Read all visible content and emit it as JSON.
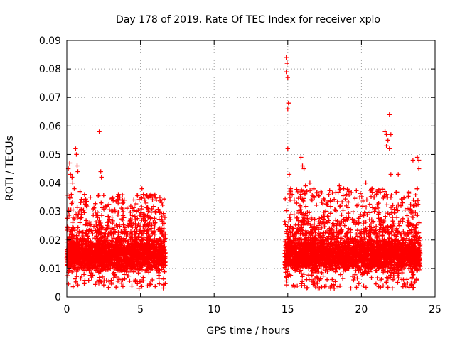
{
  "chart_data": {
    "type": "scatter",
    "title": "Day 178 of 2019, Rate Of TEC Index for receiver xplo",
    "xlabel": "GPS time / hours",
    "ylabel": "ROTI / TECUs",
    "xlim": [
      0,
      25
    ],
    "ylim": [
      0,
      0.09
    ],
    "grid": true,
    "marker": "plus",
    "color": "#ff0000",
    "x_ticks": [
      "0",
      "5",
      "10",
      "15",
      "20",
      "25"
    ],
    "y_ticks": [
      "0",
      "0.01",
      "0.02",
      "0.03",
      "0.04",
      "0.05",
      "0.06",
      "0.07",
      "0.08",
      "0.09"
    ],
    "series": [
      {
        "name": "ROTI",
        "segments": [
          {
            "x_range": [
              0.0,
              6.7
            ],
            "typical_range": [
              0.008,
              0.022
            ],
            "upper_range": [
              0.022,
              0.036
            ]
          },
          {
            "x_range": [
              14.8,
              24.0
            ],
            "typical_range": [
              0.008,
              0.022
            ],
            "upper_range": [
              0.022,
              0.038
            ]
          }
        ],
        "points": [
          [
            0.1,
            0.045
          ],
          [
            0.2,
            0.047
          ],
          [
            0.25,
            0.043
          ],
          [
            0.35,
            0.042
          ],
          [
            0.4,
            0.04
          ],
          [
            0.5,
            0.038
          ],
          [
            0.6,
            0.052
          ],
          [
            0.65,
            0.05
          ],
          [
            0.7,
            0.046
          ],
          [
            0.75,
            0.044
          ],
          [
            0.9,
            0.037
          ],
          [
            1.2,
            0.036
          ],
          [
            1.6,
            0.035
          ],
          [
            2.2,
            0.058
          ],
          [
            2.3,
            0.044
          ],
          [
            2.35,
            0.042
          ],
          [
            3.5,
            0.036
          ],
          [
            3.6,
            0.035
          ],
          [
            5.1,
            0.038
          ],
          [
            5.2,
            0.036
          ],
          [
            5.3,
            0.034
          ],
          [
            5.5,
            0.031
          ],
          [
            6.0,
            0.03
          ],
          [
            14.9,
            0.084
          ],
          [
            14.95,
            0.082
          ],
          [
            14.9,
            0.079
          ],
          [
            15.0,
            0.077
          ],
          [
            15.05,
            0.068
          ],
          [
            15.0,
            0.066
          ],
          [
            15.0,
            0.052
          ],
          [
            15.1,
            0.043
          ],
          [
            15.2,
            0.038
          ],
          [
            15.3,
            0.036
          ],
          [
            15.9,
            0.049
          ],
          [
            16.0,
            0.046
          ],
          [
            16.1,
            0.045
          ],
          [
            16.2,
            0.039
          ],
          [
            16.5,
            0.04
          ],
          [
            18.5,
            0.039
          ],
          [
            18.8,
            0.038
          ],
          [
            20.3,
            0.04
          ],
          [
            21.6,
            0.058
          ],
          [
            21.7,
            0.057
          ],
          [
            21.8,
            0.055
          ],
          [
            21.9,
            0.064
          ],
          [
            21.7,
            0.053
          ],
          [
            21.9,
            0.052
          ],
          [
            22.0,
            0.057
          ],
          [
            22.0,
            0.043
          ],
          [
            22.5,
            0.043
          ],
          [
            23.5,
            0.048
          ],
          [
            23.8,
            0.049
          ],
          [
            23.9,
            0.048
          ],
          [
            23.9,
            0.045
          ],
          [
            23.8,
            0.038
          ],
          [
            23.6,
            0.032
          ],
          [
            21.7,
            0.036
          ],
          [
            21.6,
            0.037
          ],
          [
            19.0,
            0.036
          ],
          [
            17.5,
            0.034
          ],
          [
            20.8,
            0.035
          ],
          [
            22.8,
            0.033
          ]
        ]
      }
    ]
  }
}
